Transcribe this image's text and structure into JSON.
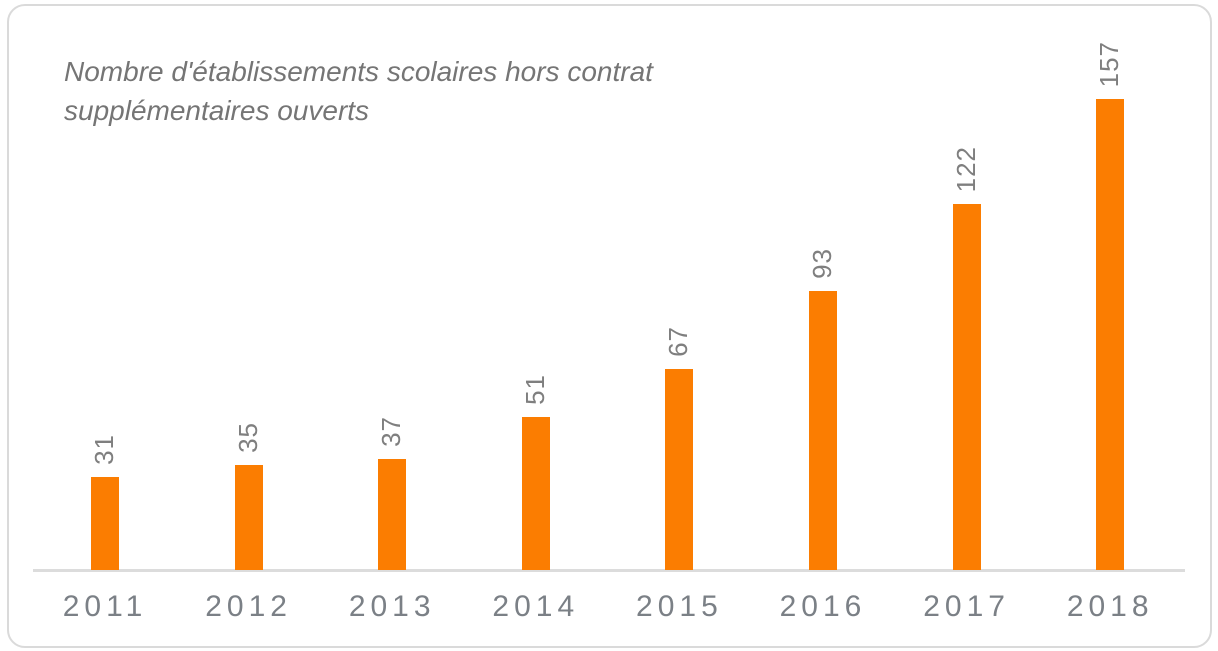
{
  "card": {
    "title_line1": "Nombre d'établissements scolaires hors contrat",
    "title_line2": "supplémentaires ouverts"
  },
  "chart_data": {
    "type": "bar",
    "title": "Nombre d'établissements scolaires hors contrat supplémentaires ouverts",
    "categories": [
      "2011",
      "2012",
      "2013",
      "2014",
      "2015",
      "2016",
      "2017",
      "2018"
    ],
    "values": [
      31,
      35,
      37,
      51,
      67,
      93,
      122,
      157
    ],
    "xlabel": "",
    "ylabel": "",
    "ylim": [
      0,
      165
    ],
    "grid": false,
    "legend_position": "none",
    "value_labels_shown": true,
    "value_label_rotation_deg": -90,
    "colors": {
      "bar": "#fb7d01",
      "value_label": "#7f7f7f",
      "axis_tick_label": "#7b8086",
      "baseline": "#dcdcdc",
      "title": "#757575",
      "card_border": "#dadada",
      "background": "#ffffff"
    }
  }
}
